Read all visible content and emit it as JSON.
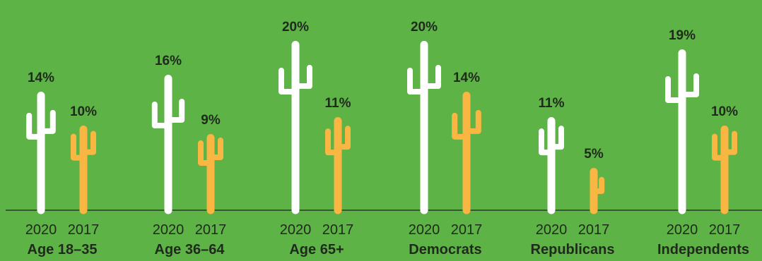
{
  "chart_data": {
    "type": "bar",
    "title": "",
    "xlabel": "",
    "ylabel": "",
    "ylim": [
      0,
      20
    ],
    "grid": false,
    "legend": "none",
    "mark_style": "cactus",
    "categories": [
      "Age 18–35",
      "Age 36–64",
      "Age 65+",
      "Democrats",
      "Republicans",
      "Independents"
    ],
    "series": [
      {
        "name": "2020",
        "color": "#ffffff",
        "values": [
          14,
          16,
          20,
          20,
          11,
          19
        ]
      },
      {
        "name": "2017",
        "color": "#f9b642",
        "values": [
          10,
          9,
          11,
          14,
          5,
          10
        ]
      }
    ],
    "value_suffix": "%",
    "baseline_color": "#2b3a26",
    "background_color": "#5db346",
    "text_color": "#1f2a1c"
  }
}
